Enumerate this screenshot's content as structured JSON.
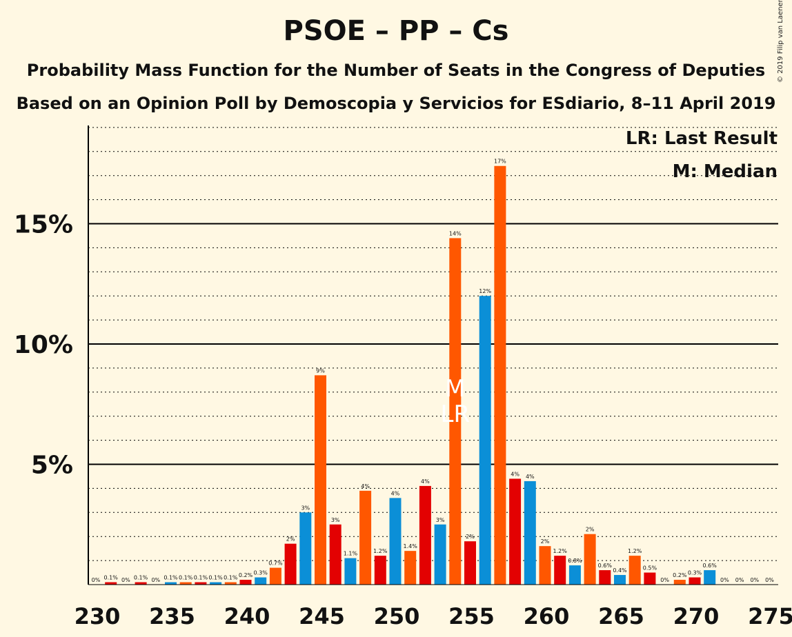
{
  "header": {
    "title": "PSOE – PP – Cs",
    "subtitle1": "Probability Mass Function for the Number of Seats in the Congress of Deputies",
    "subtitle2": "Based on an Opinion Poll by Demoscopia y Servicios for ESdiario, 8–11 April 2019",
    "copyright": "© 2019 Filip van Laenen"
  },
  "legend": {
    "last_result": "LR: Last Result",
    "median": "M: Median"
  },
  "chart_data": {
    "type": "bar",
    "x": [
      230,
      231,
      232,
      233,
      234,
      235,
      236,
      237,
      238,
      239,
      240,
      241,
      242,
      243,
      244,
      245,
      246,
      247,
      248,
      249,
      250,
      251,
      252,
      253,
      254,
      255,
      256,
      257,
      258,
      259,
      260,
      261,
      262,
      263,
      264,
      265,
      266,
      267,
      268,
      269,
      270,
      271,
      272,
      273,
      274,
      275
    ],
    "values": [
      0,
      0.1,
      0,
      0.1,
      0,
      0.1,
      0.1,
      0.1,
      0.1,
      0.1,
      0.2,
      0.3,
      0.7,
      1.7,
      3.0,
      8.7,
      2.5,
      1.1,
      3.9,
      1.2,
      3.6,
      1.4,
      4.1,
      2.5,
      14.4,
      1.8,
      12.0,
      17.4,
      4.4,
      4.3,
      1.6,
      1.2,
      0.8,
      2.1,
      0.6,
      0.4,
      1.2,
      0.5,
      0,
      0.2,
      0.3,
      0.6,
      0,
      0,
      0,
      0
    ],
    "labels": [
      "0%",
      "0.1%",
      "0%",
      "0.1%",
      "0%",
      "0.1%",
      "0.1%",
      "0.1%",
      "0.1%",
      "0.1%",
      "0.2%",
      "0.3%",
      "0.7%",
      "2%",
      "3%",
      "9%",
      "3%",
      "1.1%",
      "4%",
      "1.2%",
      "4%",
      "1.4%",
      "4%",
      "3%",
      "14%",
      "2%",
      "12%",
      "17%",
      "4%",
      "4%",
      "2%",
      "1.2%",
      "0.8%",
      "2%",
      "0.6%",
      "0.4%",
      "1.2%",
      "0.5%",
      "0%",
      "0.2%",
      "0.3%",
      "0.6%",
      "0%",
      "0%",
      "0%",
      "0%"
    ],
    "colors": [
      "#E30102",
      "#E30102",
      "#E30102",
      "#E30102",
      "#E30102",
      "#0B8FD7",
      "#FF5700",
      "#E30102",
      "#0B8FD7",
      "#FF5700",
      "#E30102",
      "#0B8FD7",
      "#FF5700",
      "#E30102",
      "#0B8FD7",
      "#FF5700",
      "#E30102",
      "#0B8FD7",
      "#FF5700",
      "#E30102",
      "#0B8FD7",
      "#FF5700",
      "#E30102",
      "#0B8FD7",
      "#FF5700",
      "#E30102",
      "#0B8FD7",
      "#FF5700",
      "#E30102",
      "#0B8FD7",
      "#FF5700",
      "#E30102",
      "#0B8FD7",
      "#FF5700",
      "#E30102",
      "#0B8FD7",
      "#FF5700",
      "#E30102",
      "#0B8FD7",
      "#FF5700",
      "#E30102",
      "#0B8FD7",
      "#FF5700",
      "#E30102",
      "#0B8FD7",
      "#FF5700"
    ],
    "ylim": [
      0,
      19
    ],
    "yticks": [
      5,
      10,
      15
    ],
    "ytick_labels": [
      "5%",
      "10%",
      "15%"
    ],
    "xticks": [
      230,
      235,
      240,
      245,
      250,
      255,
      260,
      265,
      270,
      275
    ],
    "xtick_labels": [
      "230",
      "235",
      "240",
      "245",
      "250",
      "255",
      "260",
      "265",
      "270",
      "275"
    ],
    "minor_grid_step": 1,
    "median_seat": 254,
    "last_result_seat": 254,
    "median_marker": "M",
    "last_result_marker": "LR",
    "legend_placement": "top-right"
  }
}
